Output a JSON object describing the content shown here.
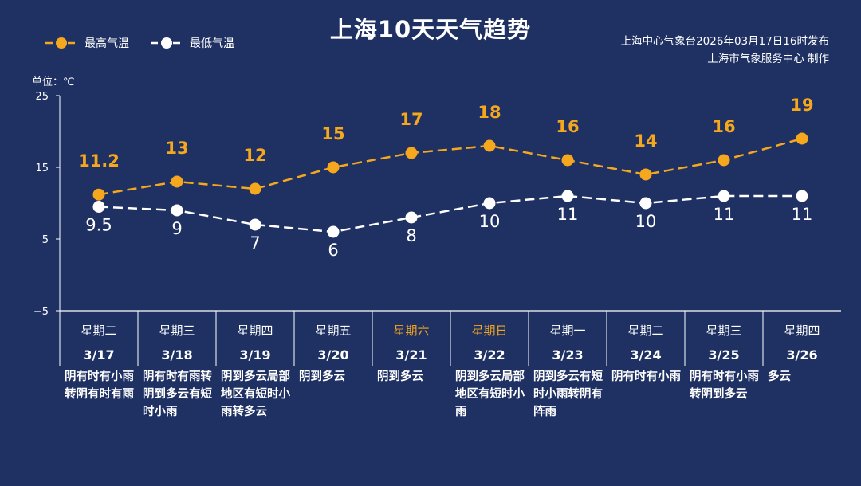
{
  "title": "上海10天天气趋势",
  "legend": {
    "high_label": "最高气温",
    "low_label": "最低气温"
  },
  "source": {
    "line1": "上海中心气象台2026年03月17日16时发布",
    "line2": "上海市气象服务中心  制作"
  },
  "unit_label": "单位：℃",
  "colors": {
    "background": "#1f3163",
    "high": "#f5a71e",
    "low": "#ffffff",
    "weekend": "#f5a71e",
    "axis": "#ffffff"
  },
  "days": [
    {
      "weekday": "星期二",
      "date": "3/17",
      "desc": "阴有时有小雨转阴有时有雨",
      "weekend": false
    },
    {
      "weekday": "星期三",
      "date": "3/18",
      "desc": "阴有时有雨转阴到多云有短时小雨",
      "weekend": false
    },
    {
      "weekday": "星期四",
      "date": "3/19",
      "desc": "阴到多云局部地区有短时小雨转多云",
      "weekend": false
    },
    {
      "weekday": "星期五",
      "date": "3/20",
      "desc": "阴到多云",
      "weekend": false
    },
    {
      "weekday": "星期六",
      "date": "3/21",
      "desc": "阴到多云",
      "weekend": true
    },
    {
      "weekday": "星期日",
      "date": "3/22",
      "desc": "阴到多云局部地区有短时小雨",
      "weekend": true
    },
    {
      "weekday": "星期一",
      "date": "3/23",
      "desc": "阴到多云有短时小雨转阴有阵雨",
      "weekend": false
    },
    {
      "weekday": "星期二",
      "date": "3/24",
      "desc": "阴有时有小雨",
      "weekend": false
    },
    {
      "weekday": "星期三",
      "date": "3/25",
      "desc": "阴有时有小雨转阴到多云",
      "weekend": false
    },
    {
      "weekday": "星期四",
      "date": "3/26",
      "desc": "多云",
      "weekend": false
    }
  ],
  "chart_data": {
    "type": "line",
    "title": "上海10天天气趋势",
    "ylabel": "单位：℃",
    "categories": [
      "3/17",
      "3/18",
      "3/19",
      "3/20",
      "3/21",
      "3/22",
      "3/23",
      "3/24",
      "3/25",
      "3/26"
    ],
    "ylim": [
      -5,
      25
    ],
    "yticks": [
      -5,
      5,
      15,
      25
    ],
    "ytick_labels": [
      "−5",
      "5",
      "15",
      "25"
    ],
    "series": [
      {
        "name": "最高气温",
        "values": [
          11.2,
          13,
          12,
          15,
          17,
          18,
          16,
          14,
          16,
          19
        ],
        "labels": [
          "11.2",
          "13",
          "12",
          "15",
          "17",
          "18",
          "16",
          "14",
          "16",
          "19"
        ]
      },
      {
        "name": "最低气温",
        "values": [
          9.5,
          9,
          7,
          6,
          8,
          10,
          11,
          10,
          11,
          11
        ],
        "labels": [
          "9.5",
          "9",
          "7",
          "6",
          "8",
          "10",
          "11",
          "10",
          "11",
          "11"
        ]
      }
    ],
    "legend": "top-left",
    "grid": false
  }
}
